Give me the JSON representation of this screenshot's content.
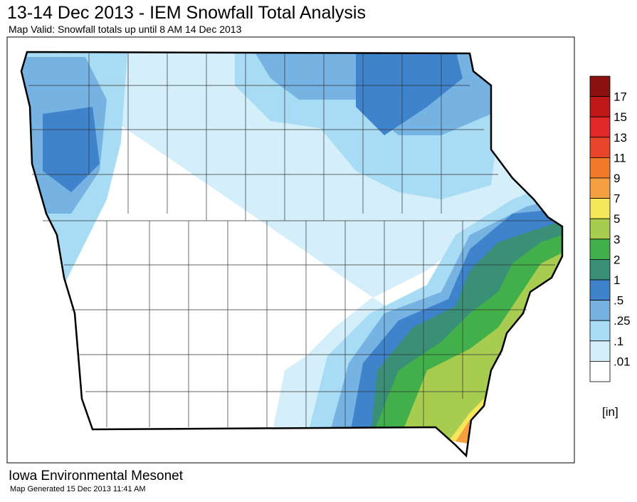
{
  "header": {
    "title": "13-14 Dec 2013 - IEM Snowfall Total Analysis",
    "subtitle": "Map Valid: Snowfall totals up until 8 AM 14 Dec 2013"
  },
  "legend": {
    "labels": [
      "17",
      "15",
      "13",
      "11",
      "9",
      "7",
      "5",
      "3",
      "2",
      "1",
      ".5",
      ".25",
      ".1",
      ".01"
    ],
    "colors": [
      "#8b1010",
      "#c01818",
      "#e02828",
      "#e8452a",
      "#f07a2a",
      "#f5a040",
      "#f5e65a",
      "#a8cc50",
      "#42b04a",
      "#3a9077",
      "#3e83cb",
      "#76b3e3",
      "#a8dcf5",
      "#d4eefa",
      "#ffffff"
    ],
    "unit": "[in]"
  },
  "footer": {
    "org": "Iowa Environmental Mesonet",
    "generated": "Map Generated 15 Dec 2013 11:41 AM"
  }
}
